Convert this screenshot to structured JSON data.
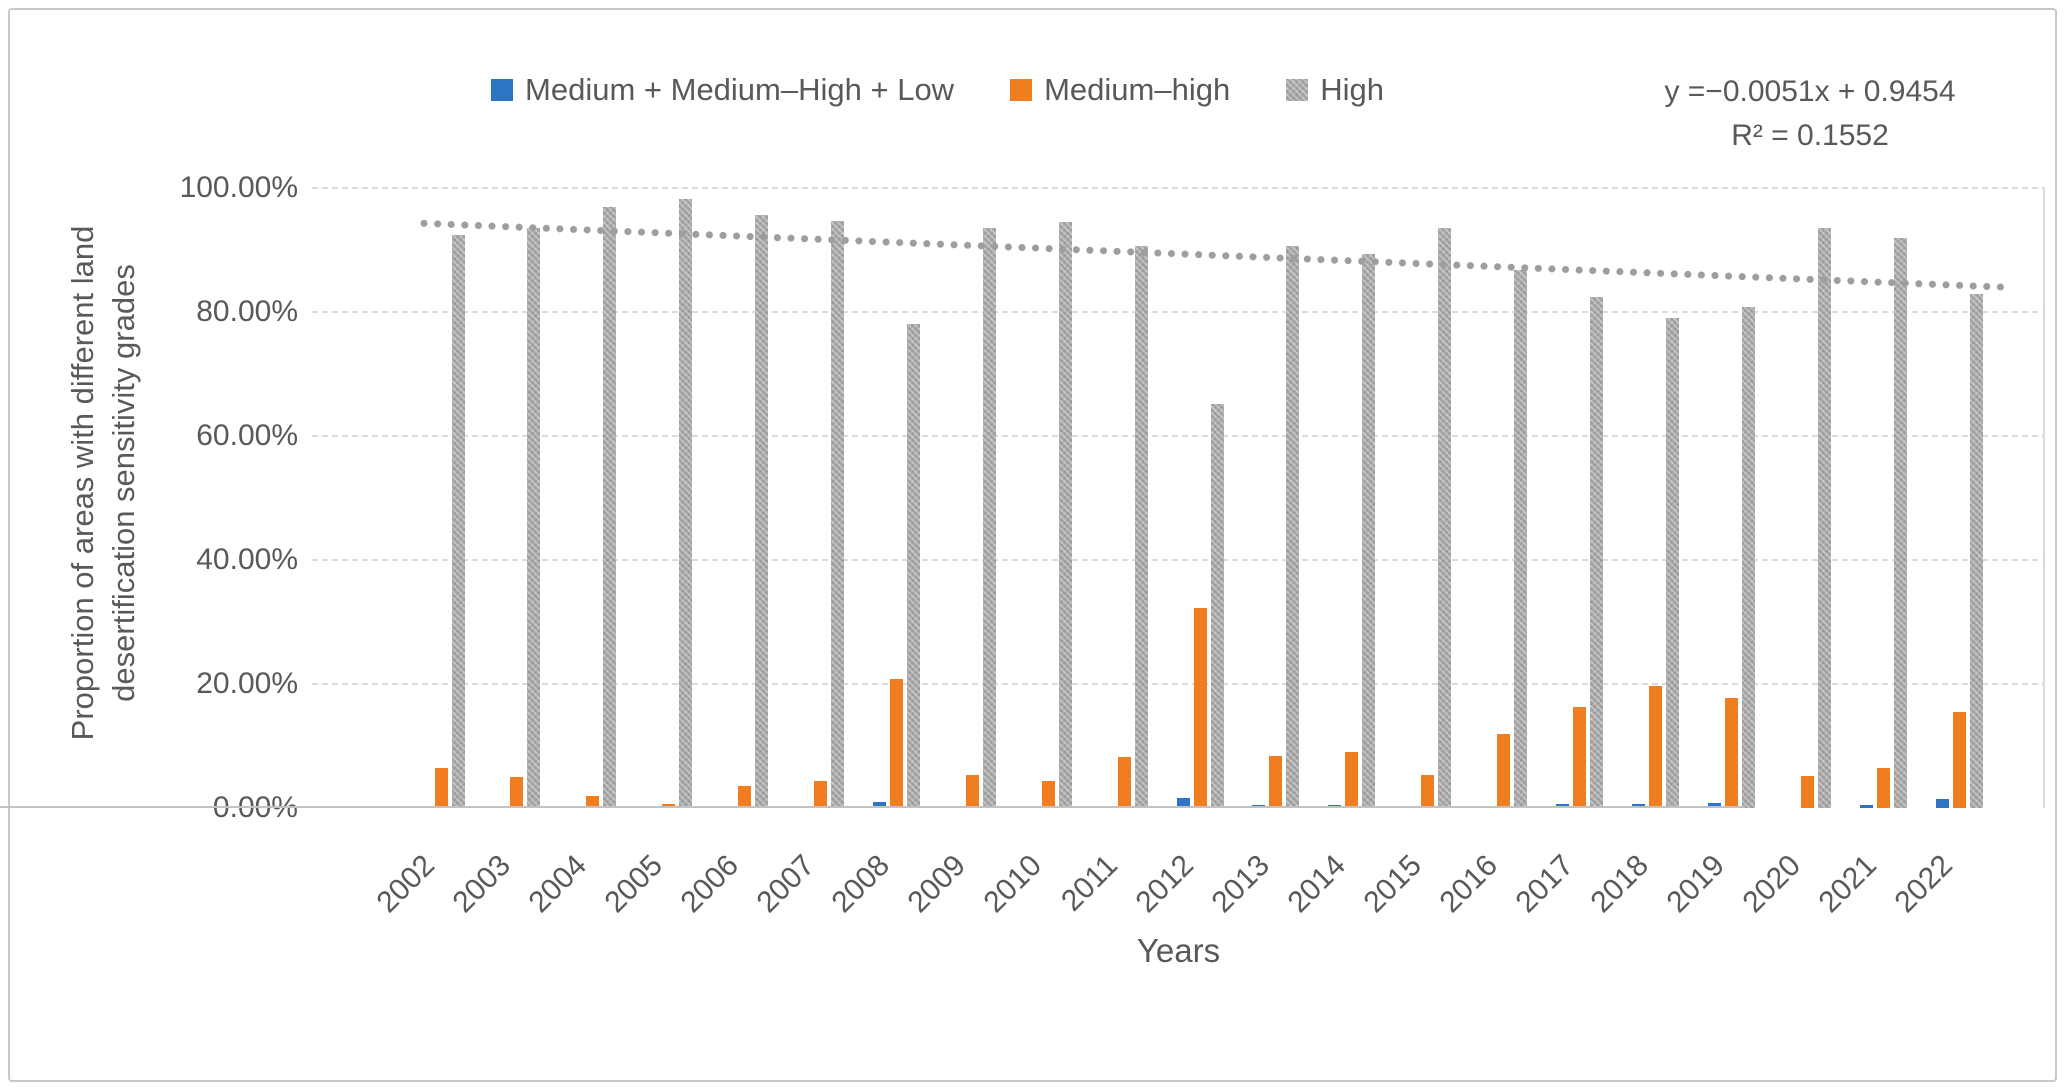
{
  "legend": {
    "items": [
      {
        "label": "Medium + Medium–High + Low",
        "color": "#2E74C4",
        "pattern": false
      },
      {
        "label": "Medium–high",
        "color": "#F07D20",
        "pattern": false
      },
      {
        "label": "High",
        "color": "#A9A9A9",
        "pattern": true
      }
    ]
  },
  "annotation": {
    "equation": "y =−0.0051x + 0.9454",
    "r_squared": "R² = 0.1552"
  },
  "y_axis": {
    "title_line1": "Proportion of areas with different land",
    "title_line2": "desertification sensitivity grades",
    "ticks": [
      "0.00%",
      "20.00%",
      "40.00%",
      "60.00%",
      "80.00%",
      "100.00%"
    ]
  },
  "x_axis": {
    "title": "Years"
  },
  "chart_data": {
    "type": "bar",
    "title": "",
    "xlabel": "Years",
    "ylabel": "Proportion of areas with different land desertification sensitivity grades",
    "ylim": [
      0,
      100
    ],
    "y_tick_step": 20,
    "grid": "horizontal-dotted",
    "legend_position": "top",
    "categories": [
      2002,
      2003,
      2004,
      2005,
      2006,
      2007,
      2008,
      2009,
      2010,
      2011,
      2012,
      2013,
      2014,
      2015,
      2016,
      2017,
      2018,
      2019,
      2020,
      2021,
      2022
    ],
    "series": [
      {
        "name": "Medium + Medium–High + Low",
        "color": "#2E74C4",
        "pattern": false,
        "values": [
          0,
          0,
          0,
          0,
          0,
          0,
          0.9,
          0,
          0,
          0,
          1.6,
          0.5,
          0.5,
          0,
          0,
          0.6,
          0.6,
          0.8,
          0,
          0.5,
          1.4
        ]
      },
      {
        "name": "Medium–high",
        "color": "#F07D20",
        "pattern": false,
        "values": [
          6.4,
          5.0,
          2.0,
          0.6,
          3.5,
          4.3,
          20.8,
          5.3,
          4.3,
          8.3,
          32.3,
          8.4,
          9.0,
          5.3,
          12.0,
          16.3,
          19.7,
          17.7,
          5.2,
          6.5,
          15.5
        ]
      },
      {
        "name": "High",
        "color": "#A9A9A9",
        "pattern": true,
        "values": [
          92.4,
          93.5,
          96.9,
          98.3,
          95.7,
          94.6,
          78.1,
          93.5,
          94.5,
          90.6,
          65.2,
          90.7,
          89.3,
          93.5,
          86.8,
          82.4,
          79.1,
          80.8,
          93.5,
          92.0,
          82.9
        ]
      }
    ],
    "trendline": {
      "applies_to_series": "High",
      "equation": "y =−0.0051x + 0.9454",
      "r2": 0.1552,
      "style": "dotted",
      "color": "#9E9E9E",
      "start_pct": 94.3,
      "end_pct": 84.0
    }
  }
}
